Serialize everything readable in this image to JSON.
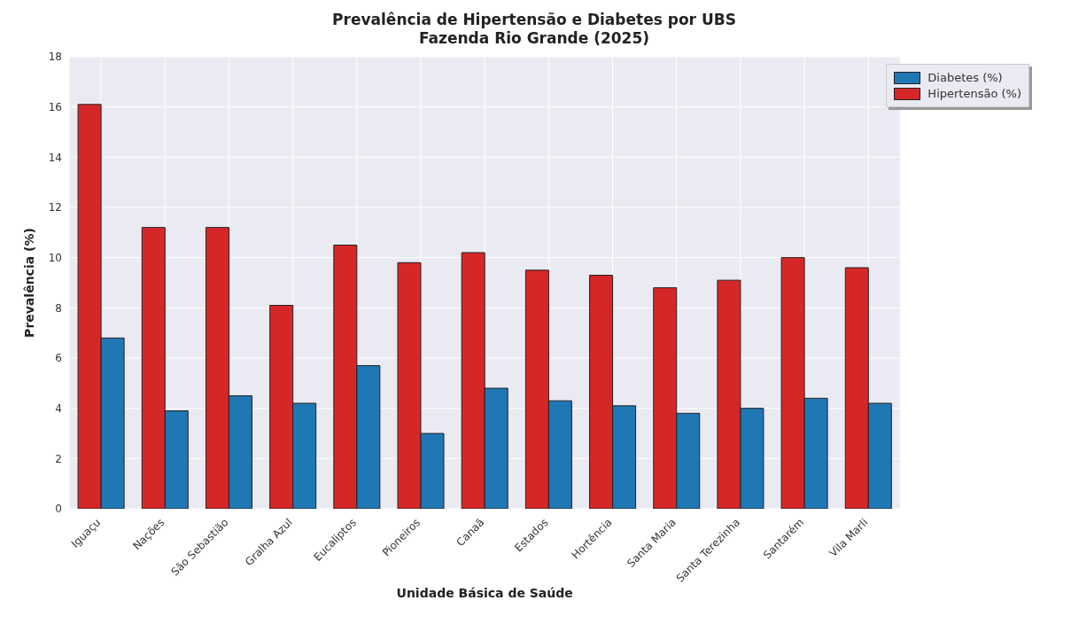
{
  "chart_data": {
    "type": "bar",
    "title": "Prevalência de Hipertensão e Diabetes por UBS\nFazenda Rio Grande (2025)",
    "xlabel": "Unidade Básica de Saúde",
    "ylabel": "Prevalência (%)",
    "categories": [
      "Iguaçu",
      "Nações",
      "São Sebastião",
      "Gralha Azul",
      "Eucaliptos",
      "Pioneiros",
      "Canaã",
      "Estados",
      "Hortência",
      "Santa Maria",
      "Santa Terezinha",
      "Santarém",
      "Vila Marli"
    ],
    "series": [
      {
        "name": "Hipertensão (%)",
        "color": "#d62728",
        "values": [
          16.1,
          11.2,
          11.2,
          8.1,
          10.5,
          9.8,
          10.2,
          9.5,
          9.3,
          8.8,
          9.1,
          10.0,
          9.6
        ]
      },
      {
        "name": "Diabetes (%)",
        "color": "#1f77b4",
        "values": [
          6.8,
          3.9,
          4.5,
          4.2,
          5.7,
          3.0,
          4.8,
          4.3,
          4.1,
          3.8,
          4.0,
          4.4,
          4.2
        ]
      }
    ],
    "ylim": [
      0,
      18
    ],
    "yticks": [
      0,
      2,
      4,
      6,
      8,
      10,
      12,
      14,
      16,
      18
    ],
    "grid": true,
    "legend": "top right"
  }
}
